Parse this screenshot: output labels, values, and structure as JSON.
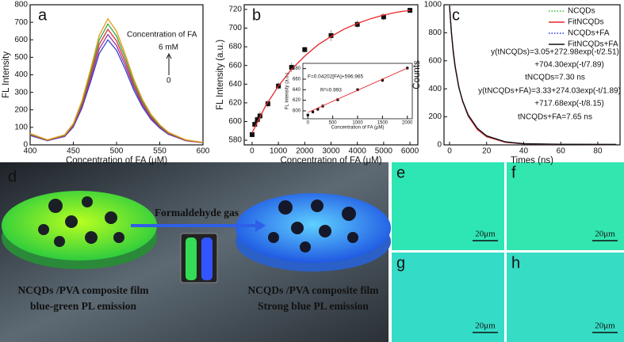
{
  "chart_data": [
    {
      "type": "line",
      "panel": "a",
      "xlabel": "Concentration of FA (μM)",
      "ylabel": "FL Intensity",
      "xlim": [
        400,
        600
      ],
      "ylim": [
        0,
        800
      ],
      "xticks": [
        400,
        450,
        500,
        550,
        600
      ],
      "yticks": [
        0,
        100,
        200,
        300,
        400,
        500,
        600,
        700,
        800
      ],
      "x": [
        400,
        420,
        440,
        450,
        460,
        470,
        480,
        490,
        500,
        510,
        520,
        530,
        540,
        550,
        560,
        570,
        580,
        600
      ],
      "series": [
        {
          "color": "#3344cc",
          "values": [
            54,
            24,
            48,
            102,
            210,
            360,
            522,
            600,
            540,
            432,
            312,
            216,
            144,
            96,
            60,
            42,
            24,
            12
          ]
        },
        {
          "color": "#9933aa",
          "values": [
            57,
            25,
            50,
            107,
            221,
            378,
            548,
            630,
            567,
            454,
            328,
            227,
            151,
            101,
            63,
            44,
            25,
            13
          ]
        },
        {
          "color": "#dd3333",
          "values": [
            59,
            26,
            53,
            112,
            231,
            396,
            574,
            660,
            594,
            475,
            343,
            238,
            158,
            106,
            66,
            46,
            26,
            13
          ]
        },
        {
          "color": "#33aa44",
          "values": [
            62,
            28,
            55,
            117,
            242,
            414,
            600,
            690,
            621,
            497,
            359,
            248,
            166,
            110,
            69,
            48,
            28,
            14
          ]
        },
        {
          "color": "#e69a1a",
          "values": [
            65,
            29,
            58,
            122,
            252,
            432,
            626,
            720,
            648,
            518,
            374,
            259,
            173,
            115,
            72,
            50,
            29,
            14
          ]
        }
      ],
      "annotations": [
        "Concentration of FA",
        "6 mM",
        "0"
      ]
    },
    {
      "type": "scatter",
      "panel": "b",
      "xlabel": "Concentration of FA (μM)",
      "ylabel": "FL Intensity (a.u.)",
      "xlim": [
        -300,
        6300
      ],
      "ylim": [
        575,
        725
      ],
      "xticks": [
        0,
        1000,
        2000,
        3000,
        4000,
        5000,
        6000
      ],
      "yticks": [
        580,
        600,
        620,
        640,
        660,
        680,
        700,
        720
      ],
      "series": [
        {
          "style": "points",
          "color": "#111111",
          "x": [
            0,
            100,
            200,
            300,
            600,
            1000,
            1500,
            2000,
            3000,
            4000,
            5000,
            6000
          ],
          "values": [
            586,
            597,
            602,
            606,
            619,
            638,
            658,
            677,
            692,
            704,
            712,
            719
          ],
          "errors": [
            3,
            4,
            4,
            5,
            4,
            4,
            5,
            3,
            6,
            4,
            4,
            3
          ]
        },
        {
          "style": "line",
          "color": "#e8262a",
          "x": [
            0,
            500,
            1000,
            1500,
            2000,
            2500,
            3000,
            3500,
            4000,
            4500,
            5000,
            5500,
            6000
          ],
          "values": [
            588,
            616,
            638,
            656,
            670,
            682,
            691,
            699,
            705,
            710,
            714,
            717,
            719
          ]
        }
      ]
    },
    {
      "type": "scatter",
      "inset": true,
      "xlabel": "Concentration of FA (μM)",
      "ylabel": "FL Intensity (a.u.)",
      "xlim": [
        -100,
        2100
      ],
      "ylim": [
        585,
        690
      ],
      "xticks": [
        0,
        500,
        1000,
        1500,
        2000
      ],
      "yticks": [
        600,
        620,
        640,
        660,
        680
      ],
      "series": [
        {
          "style": "points",
          "color": "#111111",
          "x": [
            0,
            100,
            200,
            300,
            600,
            1000,
            1500,
            2000
          ],
          "values": [
            592,
            598,
            603,
            609,
            621,
            640,
            658,
            681
          ],
          "errors": [
            3,
            3,
            3,
            4,
            3,
            3,
            4,
            3
          ]
        },
        {
          "style": "line",
          "color": "#e8262a",
          "x": [
            0,
            2000
          ],
          "values": [
            597,
            681
          ]
        }
      ],
      "annotations": [
        "F=0.04202[FA]+596.965",
        "R²=0.993"
      ]
    },
    {
      "type": "line",
      "panel": "c",
      "xlabel": "Times (ns)",
      "ylabel": "Counts",
      "xlim": [
        -3,
        92
      ],
      "ylim": [
        0,
        1000
      ],
      "xticks": [
        0,
        20,
        40,
        60,
        80
      ],
      "yticks": [
        0,
        200,
        400,
        600,
        800,
        1000
      ],
      "x": [
        0,
        1,
        2,
        3,
        5,
        7,
        10,
        15,
        20,
        30,
        40,
        60,
        90
      ],
      "series": [
        {
          "name": "NCQDs",
          "style": "dotted",
          "color": "#33bb33",
          "values": [
            975,
            812,
            668,
            572,
            409,
            314,
            202,
            112,
            56,
            21,
            6,
            4,
            2
          ]
        },
        {
          "name": "FitNCQDs",
          "style": "line",
          "color": "#e8262a",
          "values": [
            980.3,
            806.7,
            672.8,
            567.4,
            414.0,
            310.2,
            206.4,
            108.9,
            58.9,
            18.8,
            7.5,
            3.4,
            3.1
          ]
        },
        {
          "name": "NCQDs+FA",
          "style": "dotted",
          "color": "#2233dd",
          "values": [
            990,
            805,
            655,
            560,
            407,
            318,
            211,
            120,
            63,
            23,
            7,
            5,
            3
          ]
        },
        {
          "name": "FitNCQDs+FA",
          "style": "line",
          "color": "#111111",
          "values": [
            995.0,
            800.0,
            659.9,
            556.1,
            411.3,
            314.1,
            215.1,
            117.3,
            65.1,
            21.4,
            8.6,
            3.8,
            3.3
          ]
        }
      ],
      "annotations": [
        "y(tNCQDs)=3.05+272.98exp(-t/2.51)",
        "+704.30exp(-t/7.89)",
        "tNCQDs=7.30 ns",
        "y(tNCQDs+FA)=3.33+274.03exp(-t/1.89)",
        "+717.68exp(-t/8.15)",
        "tNCQDs+FA=7.65 ns"
      ]
    }
  ],
  "illustration": {
    "panel": "d",
    "arrow_label": "Formaldehyde gas",
    "left_caption": [
      "NCQDs /PVA composite film",
      "blue-green PL emission"
    ],
    "right_caption": [
      "NCQDs /PVA composite film",
      "Strong blue PL emission"
    ]
  },
  "micrographs": [
    {
      "panel": "e",
      "scale_bar": "20μm"
    },
    {
      "panel": "f",
      "scale_bar": "20μm"
    },
    {
      "panel": "g",
      "scale_bar": "20μm"
    },
    {
      "panel": "h",
      "scale_bar": "20μm"
    }
  ]
}
